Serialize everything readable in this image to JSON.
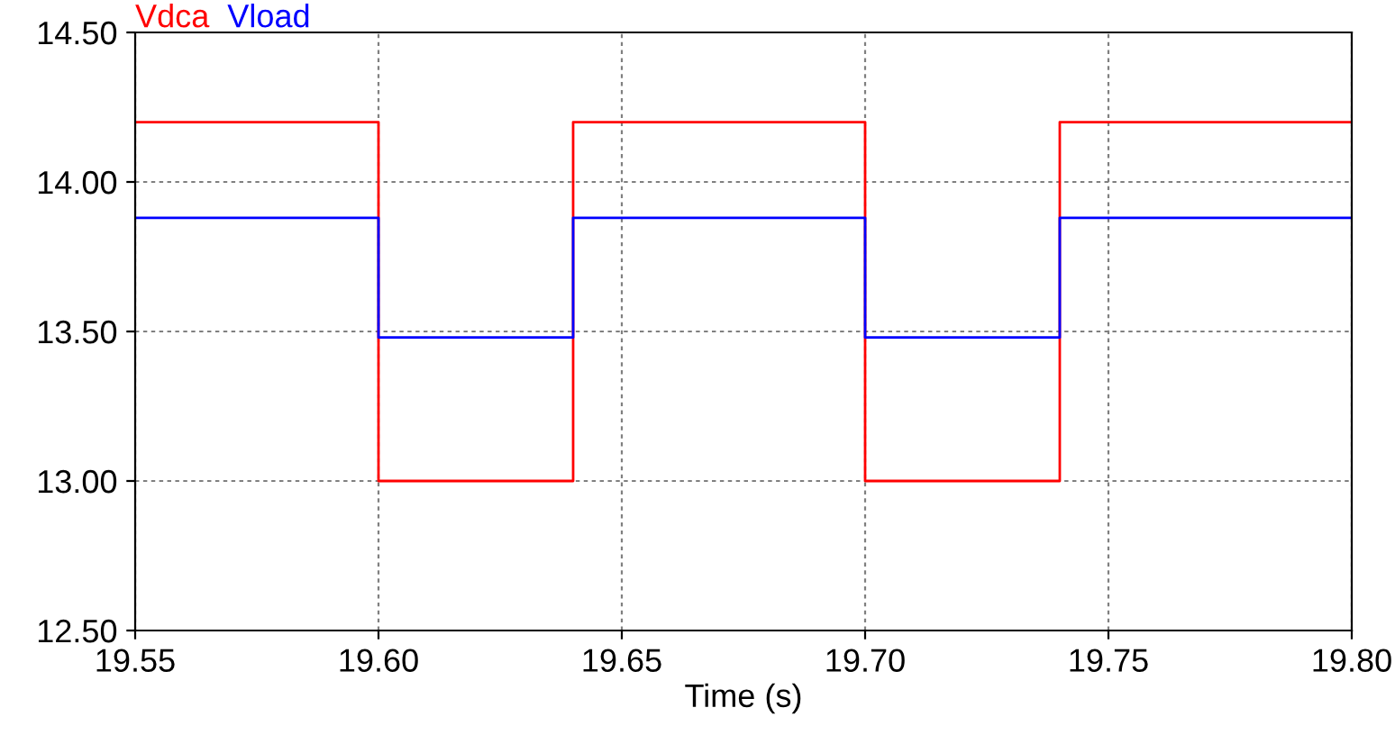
{
  "chart_data": {
    "type": "step",
    "xlabel": "Time (s)",
    "x": [
      19.55,
      19.6,
      19.64,
      19.7,
      19.74,
      19.8
    ],
    "series": [
      {
        "name": "Vdca",
        "color": "#ff0000",
        "values": [
          14.2,
          13.0,
          14.2,
          13.0,
          14.2,
          14.2
        ]
      },
      {
        "name": "Vload",
        "color": "#0000ff",
        "values": [
          13.88,
          13.48,
          13.88,
          13.48,
          13.88,
          13.88
        ]
      }
    ],
    "xlim": [
      19.55,
      19.8
    ],
    "ylim": [
      12.5,
      14.5
    ],
    "xticks": [
      19.55,
      {
        "value": 19.6,
        "label": "19.60"
      },
      19.65,
      {
        "value": 19.7,
        "label": "19.70"
      },
      19.75,
      {
        "value": 19.8,
        "label": "19.80"
      }
    ],
    "yticks": [
      {
        "value": 12.5,
        "label": "12.50"
      },
      {
        "value": 13.0,
        "label": "13.00"
      },
      {
        "value": 13.5,
        "label": "13.50"
      },
      {
        "value": 14.0,
        "label": "14.00"
      },
      {
        "value": 14.5,
        "label": "14.50"
      }
    ],
    "grid": true,
    "legend": "top left",
    "line_style": "solid",
    "marker": "none"
  }
}
